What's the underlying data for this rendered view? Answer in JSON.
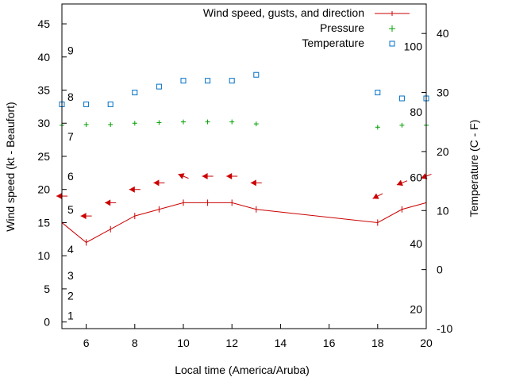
{
  "chart_data": {
    "type": "line",
    "xlabel": "Local time (America/Aruba)",
    "ylabel": "Wind speed (kt - Beaufort)",
    "y2label": "Temperature (C - F)",
    "xlim": [
      5,
      20
    ],
    "ylim": [
      -1,
      48
    ],
    "y2lim": [
      -10,
      45
    ],
    "x_ticks": [
      "6",
      "8",
      "10",
      "12",
      "14",
      "16",
      "18",
      "20"
    ],
    "y_ticks": [
      "0",
      "5",
      "10",
      "15",
      "20",
      "25",
      "30",
      "35",
      "40",
      "45"
    ],
    "y2_ticks": [
      "-10",
      "0",
      "10",
      "20",
      "30",
      "40"
    ],
    "beaufort_labels": [
      {
        "label": "1",
        "kt": 1
      },
      {
        "label": "2",
        "kt": 4
      },
      {
        "label": "3",
        "kt": 7
      },
      {
        "label": "4",
        "kt": 11
      },
      {
        "label": "5",
        "kt": 17
      },
      {
        "label": "6",
        "kt": 22
      },
      {
        "label": "7",
        "kt": 28
      },
      {
        "label": "8",
        "kt": 34
      },
      {
        "label": "9",
        "kt": 41
      }
    ],
    "fahrenheit_labels": [
      {
        "label": "20",
        "temp_c": -6.7
      },
      {
        "label": "40",
        "temp_c": 4.4
      },
      {
        "label": "60",
        "temp_c": 15.6
      },
      {
        "label": "80",
        "temp_c": 26.7
      },
      {
        "label": "100",
        "temp_c": 37.8
      }
    ],
    "legend_position": "top-right",
    "grid": false,
    "series": [
      {
        "name": "Wind speed, gusts, and direction",
        "color": "#cc0000",
        "x": [
          5,
          6,
          7,
          8,
          9,
          10,
          11,
          12,
          13,
          18,
          19,
          20
        ],
        "values": [
          15,
          12,
          14,
          16,
          17,
          18,
          18,
          18,
          17,
          15,
          17,
          18
        ],
        "direction_arrows": [
          {
            "x": 5,
            "y": 19,
            "dx": -1,
            "dy": 0
          },
          {
            "x": 6,
            "y": 16,
            "dx": -1,
            "dy": 0
          },
          {
            "x": 7,
            "y": 18,
            "dx": -1,
            "dy": 0
          },
          {
            "x": 8,
            "y": 20,
            "dx": -1,
            "dy": 0
          },
          {
            "x": 9,
            "y": 21,
            "dx": -1,
            "dy": 0
          },
          {
            "x": 10,
            "y": 22,
            "dx": -1,
            "dy": -0.4
          },
          {
            "x": 11,
            "y": 22,
            "dx": -1,
            "dy": 0
          },
          {
            "x": 12,
            "y": 22,
            "dx": -1,
            "dy": 0
          },
          {
            "x": 13,
            "y": 21,
            "dx": -1,
            "dy": 0
          },
          {
            "x": 18,
            "y": 19,
            "dx": -1,
            "dy": 0.5
          },
          {
            "x": 19,
            "y": 21,
            "dx": -1,
            "dy": 0.4
          },
          {
            "x": 20,
            "y": 22,
            "dx": -1,
            "dy": 0.4
          }
        ]
      },
      {
        "name": "Pressure",
        "color": "#00a000",
        "x": [
          5,
          6,
          7,
          8,
          9,
          10,
          11,
          12,
          13,
          18,
          19,
          20
        ],
        "values": [
          29.7,
          29.8,
          29.8,
          30.0,
          30.1,
          30.2,
          30.2,
          30.2,
          29.9,
          29.4,
          29.7,
          29.7
        ]
      },
      {
        "name": "Temperature",
        "color": "#0070c8",
        "axis": "y2",
        "x": [
          5,
          6,
          7,
          8,
          9,
          10,
          11,
          12,
          13,
          18,
          19,
          20
        ],
        "values": [
          28,
          28,
          28,
          30,
          31,
          32,
          32,
          32,
          33,
          30,
          29,
          29
        ]
      }
    ]
  }
}
